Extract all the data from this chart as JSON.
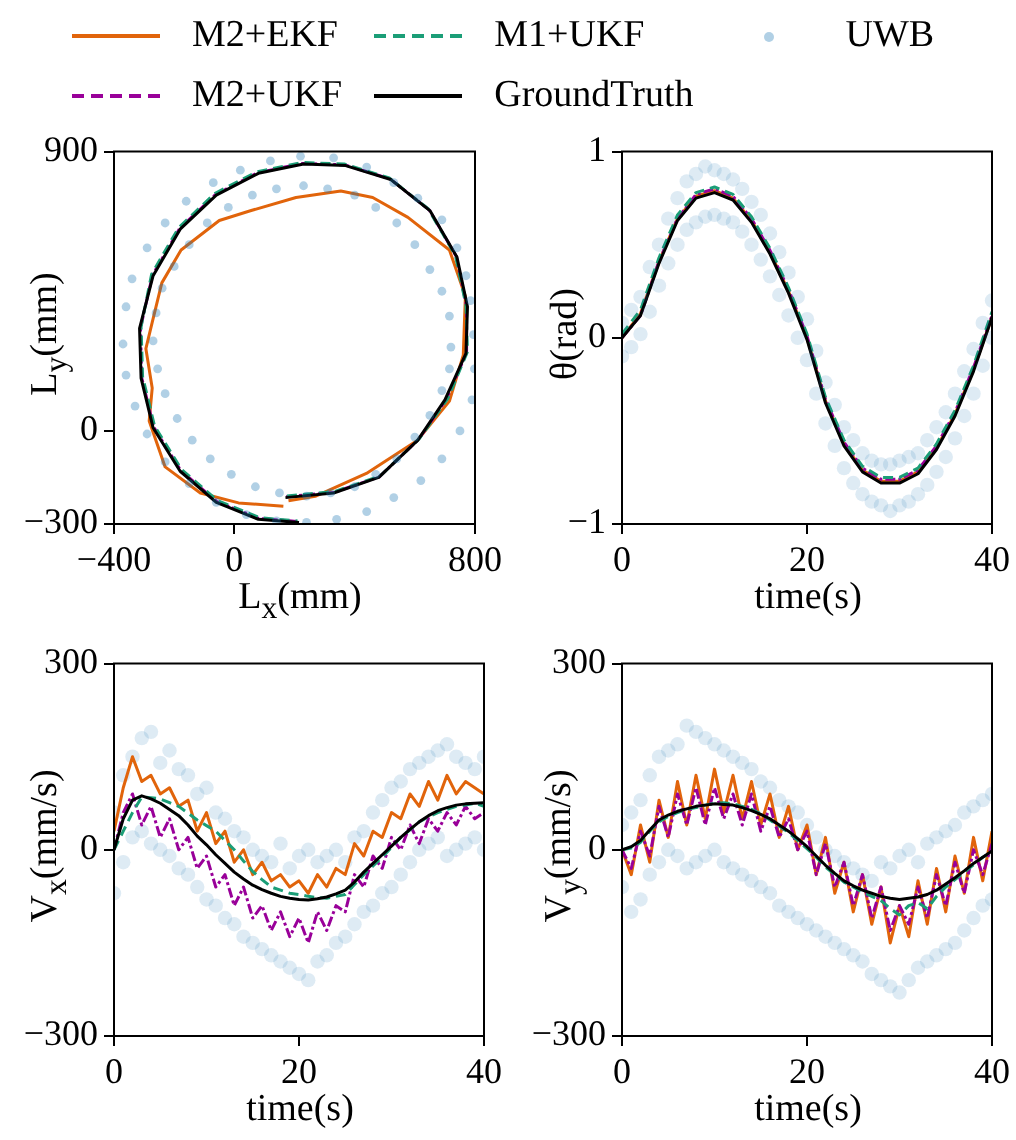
{
  "chart_data": [
    {
      "type": "line",
      "xlabel": "L$_{x}$(mm)",
      "ylabel": "L$_{y}$(mm)",
      "xlim": [
        -400,
        800
      ],
      "ylim": [
        -300,
        900
      ],
      "xticks": [
        -400,
        0,
        800
      ],
      "yticks": [
        -300,
        0,
        900
      ],
      "legend": "top",
      "series": [
        {
          "name": "M2+EKF",
          "type": "line",
          "color": "#e1640b",
          "line_style": "solid",
          "marker": "none",
          "x": [
            180,
            269,
            439,
            608,
            715,
            761,
            768,
            715,
            577,
            460,
            354,
            205,
            56,
            -50,
            -177,
            -241,
            -273,
            -294,
            -273,
            -283,
            -230,
            -113,
            14,
            163
          ],
          "values": [
            -225,
            -211,
            -137,
            -31,
            96,
            244,
            434,
            583,
            688,
            752,
            773,
            752,
            710,
            678,
            583,
            477,
            350,
            265,
            138,
            32,
            -116,
            -200,
            -232,
            -243
          ]
        },
        {
          "name": "M2+UKF",
          "type": "line",
          "color": "#990099",
          "line_style": "dashdot",
          "marker": "none",
          "x": [
            172,
            332,
            482,
            612,
            705,
            772,
            772,
            738,
            648,
            518,
            368,
            228,
            78,
            -62,
            -182,
            -272,
            -312,
            -308,
            -268,
            -178,
            -58,
            82,
            212
          ],
          "values": [
            -212,
            -198,
            -148,
            -28,
            102,
            252,
            402,
            562,
            712,
            812,
            857,
            862,
            832,
            762,
            652,
            502,
            332,
            172,
            12,
            -128,
            -228,
            -282,
            -292
          ]
        },
        {
          "name": "M1+UKF",
          "type": "line",
          "color": "#1b9e77",
          "line_style": "dashed",
          "marker": "none",
          "x": [
            175,
            335,
            485,
            615,
            710,
            775,
            770,
            735,
            645,
            515,
            365,
            225,
            75,
            -65,
            -185,
            -275,
            -310,
            -305,
            -265,
            -175,
            -55,
            85,
            210
          ],
          "values": [
            -210,
            -195,
            -145,
            -25,
            105,
            255,
            405,
            565,
            715,
            815,
            860,
            865,
            835,
            765,
            655,
            505,
            335,
            175,
            15,
            -125,
            -225,
            -280,
            -290
          ]
        },
        {
          "name": "GroundTruth",
          "type": "line",
          "color": "#000000",
          "line_style": "solid",
          "marker": "none",
          "x": [
            170,
            330,
            480,
            610,
            700,
            770,
            775,
            740,
            650,
            520,
            370,
            230,
            80,
            -60,
            -180,
            -270,
            -315,
            -310,
            -270,
            -180,
            -60,
            80,
            215
          ],
          "values": [
            -215,
            -200,
            -150,
            -30,
            100,
            250,
            400,
            560,
            710,
            810,
            855,
            860,
            830,
            760,
            650,
            500,
            330,
            170,
            10,
            -130,
            -230,
            -285,
            -295
          ]
        },
        {
          "name": "UWB",
          "type": "scatter",
          "color": "#1f77b4",
          "marker": "circle",
          "x": [
            795,
            785,
            770,
            740,
            690,
            610,
            530,
            440,
            330,
            220,
            120,
            20,
            -70,
            -160,
            -230,
            -290,
            -340,
            -360,
            -370,
            -360,
            -330,
            -290,
            -230,
            -150,
            -60,
            40,
            140,
            240,
            340,
            440,
            530,
            620,
            690,
            750,
            790,
            798,
            720,
            715,
            690,
            650,
            600,
            540,
            470,
            400,
            310,
            230,
            140,
            60,
            -20,
            -90,
            -150,
            -200,
            -240,
            -260,
            -270,
            -255,
            -230,
            -190,
            -140,
            -80,
            -10,
            70,
            150,
            240,
            320,
            400,
            470,
            540,
            600,
            650,
            690,
            715
          ],
          "values": [
            310,
            420,
            500,
            590,
            680,
            750,
            800,
            850,
            880,
            885,
            870,
            840,
            800,
            740,
            670,
            590,
            490,
            400,
            280,
            180,
            80,
            -10,
            -100,
            -170,
            -230,
            -270,
            -290,
            -295,
            -285,
            -260,
            -215,
            -160,
            -90,
            0,
            100,
            200,
            270,
            370,
            450,
            520,
            600,
            670,
            720,
            760,
            780,
            790,
            780,
            760,
            720,
            670,
            600,
            530,
            460,
            380,
            290,
            200,
            120,
            40,
            -30,
            -90,
            -140,
            -180,
            -200,
            -210,
            -200,
            -180,
            -140,
            -90,
            -20,
            50,
            130,
            200
          ]
        }
      ]
    },
    {
      "type": "line",
      "xlabel": "time(s)",
      "ylabel": "θ(rad)",
      "xlim": [
        0,
        40
      ],
      "ylim": [
        -1,
        1
      ],
      "xticks": [
        0,
        20,
        40
      ],
      "yticks": [
        -1,
        0,
        1
      ],
      "series": [
        {
          "type": "line",
          "color": "#e1640b",
          "line_style": "solid",
          "marker": "none",
          "x": [
            0,
            2,
            4,
            6,
            8,
            10,
            12,
            14,
            16,
            18,
            20,
            22,
            24,
            26,
            28,
            30,
            32,
            34,
            36,
            38,
            40
          ],
          "values": [
            0,
            0.13,
            0.41,
            0.64,
            0.76,
            0.79,
            0.75,
            0.63,
            0.46,
            0.25,
            0.0,
            -0.34,
            -0.57,
            -0.71,
            -0.77,
            -0.77,
            -0.72,
            -0.59,
            -0.41,
            -0.17,
            0.11
          ]
        },
        {
          "type": "line",
          "color": "#990099",
          "line_style": "dashdot",
          "marker": "none",
          "x": [
            0,
            2,
            4,
            6,
            8,
            10,
            12,
            14,
            16,
            18,
            20,
            22,
            24,
            26,
            28,
            30,
            32,
            34,
            36,
            38,
            40
          ],
          "values": [
            0,
            0.12,
            0.41,
            0.64,
            0.77,
            0.8,
            0.76,
            0.64,
            0.47,
            0.26,
            0.01,
            -0.33,
            -0.56,
            -0.7,
            -0.76,
            -0.76,
            -0.71,
            -0.58,
            -0.4,
            -0.16,
            0.12
          ]
        },
        {
          "type": "line",
          "color": "#1b9e77",
          "line_style": "dashed",
          "marker": "none",
          "x": [
            0,
            2,
            4,
            6,
            8,
            10,
            12,
            14,
            16,
            18,
            20,
            22,
            24,
            26,
            28,
            30,
            32,
            34,
            36,
            38,
            40
          ],
          "values": [
            0.02,
            0.15,
            0.43,
            0.66,
            0.78,
            0.81,
            0.77,
            0.65,
            0.48,
            0.27,
            0.02,
            -0.32,
            -0.55,
            -0.69,
            -0.75,
            -0.75,
            -0.7,
            -0.57,
            -0.39,
            -0.15,
            0.14
          ]
        },
        {
          "type": "line",
          "color": "#000000",
          "line_style": "solid",
          "marker": "none",
          "x": [
            0,
            2,
            4,
            6,
            8,
            10,
            12,
            14,
            16,
            18,
            20,
            22,
            24,
            26,
            28,
            30,
            32,
            34,
            36,
            38,
            40
          ],
          "values": [
            0,
            0.12,
            0.4,
            0.63,
            0.75,
            0.78,
            0.74,
            0.62,
            0.45,
            0.24,
            -0.01,
            -0.35,
            -0.58,
            -0.72,
            -0.78,
            -0.78,
            -0.73,
            -0.6,
            -0.42,
            -0.18,
            0.11
          ]
        },
        {
          "type": "scatter",
          "color": "#1f77b4",
          "marker": "circle",
          "x": [
            0,
            1,
            2,
            3,
            4,
            5,
            6,
            7,
            8,
            9,
            10,
            11,
            12,
            13,
            14,
            15,
            16,
            17,
            18,
            19,
            20,
            21,
            22,
            23,
            24,
            25,
            26,
            27,
            28,
            29,
            30,
            31,
            32,
            33,
            34,
            35,
            36,
            37,
            38,
            39,
            40,
            0,
            1,
            2,
            3,
            4,
            5,
            6,
            7,
            8,
            9,
            10,
            11,
            12,
            13,
            14,
            15,
            16,
            17,
            18,
            19,
            20,
            21,
            22,
            23,
            24,
            25,
            26,
            27,
            28,
            29,
            30,
            31,
            32,
            33,
            34,
            35,
            36,
            37,
            38,
            39,
            40
          ],
          "values": [
            0.08,
            0.15,
            0.22,
            0.38,
            0.5,
            0.64,
            0.75,
            0.84,
            0.88,
            0.92,
            0.9,
            0.88,
            0.85,
            0.8,
            0.73,
            0.66,
            0.56,
            0.46,
            0.35,
            0.22,
            0.1,
            -0.07,
            -0.24,
            -0.36,
            -0.48,
            -0.55,
            -0.62,
            -0.66,
            -0.68,
            -0.68,
            -0.66,
            -0.64,
            -0.62,
            -0.55,
            -0.48,
            -0.4,
            -0.3,
            -0.18,
            -0.06,
            0.08,
            0.2,
            -0.1,
            -0.05,
            0.02,
            0.14,
            0.28,
            0.4,
            0.5,
            0.58,
            0.62,
            0.65,
            0.66,
            0.64,
            0.62,
            0.57,
            0.5,
            0.42,
            0.33,
            0.23,
            0.12,
            0.0,
            -0.12,
            -0.3,
            -0.46,
            -0.58,
            -0.7,
            -0.78,
            -0.84,
            -0.88,
            -0.9,
            -0.93,
            -0.9,
            -0.88,
            -0.84,
            -0.79,
            -0.72,
            -0.64,
            -0.54,
            -0.42,
            -0.3,
            -0.15,
            0.0
          ]
        }
      ]
    },
    {
      "type": "line",
      "xlabel": "time(s)",
      "ylabel": "V$_{x}$(mm/s)",
      "xlim": [
        0,
        40
      ],
      "ylim": [
        -300,
        300
      ],
      "xticks": [
        0,
        20,
        40
      ],
      "yticks": [
        -300,
        0,
        300
      ],
      "series": [
        {
          "type": "scatter",
          "color": "#1f77b4",
          "marker": "circle",
          "x": [
            0,
            1,
            2,
            3,
            4,
            5,
            6,
            7,
            8,
            9,
            10,
            11,
            12,
            13,
            14,
            15,
            16,
            17,
            18,
            19,
            20,
            21,
            22,
            23,
            24,
            25,
            26,
            27,
            28,
            29,
            30,
            31,
            32,
            33,
            34,
            35,
            36,
            37,
            38,
            39,
            40,
            0,
            1,
            2,
            3,
            4,
            5,
            6,
            7,
            8,
            9,
            10,
            11,
            12,
            13,
            14,
            15,
            16,
            17,
            18,
            19,
            20,
            21,
            22,
            23,
            24,
            25,
            26,
            27,
            28,
            29,
            30,
            31,
            32,
            33,
            34,
            35,
            36,
            37,
            38,
            39,
            40
          ],
          "values": [
            60,
            120,
            150,
            180,
            190,
            140,
            160,
            130,
            120,
            90,
            100,
            60,
            50,
            30,
            20,
            0,
            -10,
            -20,
            10,
            -30,
            -10,
            0,
            -20,
            -10,
            0,
            -20,
            20,
            30,
            60,
            80,
            100,
            110,
            130,
            140,
            150,
            160,
            170,
            150,
            140,
            130,
            150,
            -70,
            -20,
            20,
            30,
            10,
            0,
            -10,
            -30,
            -40,
            -60,
            -80,
            -90,
            -110,
            -120,
            -140,
            -150,
            -160,
            -170,
            -180,
            -190,
            -200,
            -210,
            -180,
            -170,
            -150,
            -140,
            -120,
            -100,
            -90,
            -70,
            -60,
            -40,
            -20,
            0,
            10,
            20,
            -10,
            0,
            10,
            20,
            0
          ]
        },
        {
          "type": "line",
          "color": "#e1640b",
          "line_style": "solid",
          "marker": "none",
          "x": [
            0,
            1,
            2,
            3,
            4,
            5,
            6,
            7,
            8,
            9,
            10,
            11,
            12,
            13,
            14,
            15,
            16,
            17,
            18,
            19,
            20,
            21,
            22,
            23,
            24,
            25,
            26,
            27,
            28,
            29,
            30,
            31,
            32,
            33,
            34,
            35,
            36,
            37,
            38,
            39,
            40
          ],
          "values": [
            30,
            100,
            150,
            110,
            120,
            90,
            100,
            70,
            80,
            30,
            60,
            10,
            30,
            -20,
            0,
            -40,
            -20,
            -50,
            -40,
            -60,
            -50,
            -70,
            -40,
            -60,
            -30,
            -40,
            10,
            -10,
            30,
            20,
            60,
            50,
            90,
            70,
            110,
            80,
            120,
            90,
            110,
            100,
            90
          ]
        },
        {
          "type": "line",
          "color": "#990099",
          "line_style": "dashdot",
          "marker": "none",
          "x": [
            0,
            1,
            2,
            3,
            4,
            5,
            6,
            7,
            8,
            9,
            10,
            11,
            12,
            13,
            14,
            15,
            16,
            17,
            18,
            19,
            20,
            21,
            22,
            23,
            24,
            25,
            26,
            27,
            28,
            29,
            30,
            31,
            32,
            33,
            34,
            35,
            36,
            37,
            38,
            39,
            40
          ],
          "values": [
            0,
            60,
            90,
            40,
            70,
            20,
            50,
            0,
            20,
            -30,
            -10,
            -60,
            -40,
            -90,
            -60,
            -110,
            -90,
            -130,
            -100,
            -140,
            -110,
            -150,
            -100,
            -130,
            -90,
            -100,
            -40,
            -60,
            -10,
            -30,
            20,
            0,
            40,
            10,
            50,
            30,
            60,
            40,
            70,
            50,
            60
          ]
        },
        {
          "type": "line",
          "color": "#1b9e77",
          "line_style": "dashed",
          "marker": "none",
          "x": [
            0,
            1,
            2,
            3,
            4,
            5,
            6,
            7,
            8,
            9,
            10,
            11,
            12,
            13,
            14,
            15,
            16,
            17,
            18,
            19,
            20,
            21,
            22,
            23,
            24,
            25,
            26,
            27,
            28,
            29,
            30,
            31,
            32,
            33,
            34,
            35,
            36,
            37,
            38,
            39,
            40
          ],
          "values": [
            0,
            30,
            60,
            85,
            84,
            82,
            76,
            70,
            59,
            48,
            39,
            30,
            15,
            0,
            -18,
            -35,
            -48,
            -60,
            -65,
            -70,
            -72,
            -75,
            -77,
            -78,
            -75,
            -72,
            -56,
            -40,
            -26,
            -12,
            4,
            20,
            32,
            45,
            53,
            60,
            65,
            70,
            72,
            75,
            70
          ]
        },
        {
          "type": "line",
          "color": "#000000",
          "line_style": "solid",
          "marker": "none",
          "x": [
            0,
            1,
            2,
            3,
            4,
            5,
            6,
            7,
            8,
            9,
            10,
            11,
            12,
            13,
            14,
            15,
            16,
            17,
            18,
            19,
            20,
            21,
            22,
            23,
            24,
            25,
            26,
            27,
            28,
            29,
            30,
            31,
            32,
            33,
            34,
            35,
            36,
            37,
            38,
            39,
            40
          ],
          "values": [
            0,
            50,
            80,
            87,
            82,
            75,
            65,
            55,
            40,
            22,
            8,
            -8,
            -22,
            -36,
            -47,
            -57,
            -64,
            -70,
            -75,
            -78,
            -80,
            -81,
            -79,
            -76,
            -71,
            -65,
            -52,
            -36,
            -22,
            -8,
            6,
            20,
            33,
            45,
            55,
            63,
            68,
            72,
            74,
            75,
            76
          ]
        }
      ]
    },
    {
      "type": "line",
      "xlabel": "time(s)",
      "ylabel": "V$_{y}$(mm/s)",
      "xlim": [
        0,
        40
      ],
      "ylim": [
        -300,
        300
      ],
      "xticks": [
        0,
        20,
        40
      ],
      "yticks": [
        -300,
        0,
        300
      ],
      "series": [
        {
          "type": "scatter",
          "color": "#1f77b4",
          "marker": "circle",
          "x": [
            0,
            1,
            2,
            3,
            4,
            5,
            6,
            7,
            8,
            9,
            10,
            11,
            12,
            13,
            14,
            15,
            16,
            17,
            18,
            19,
            20,
            21,
            22,
            23,
            24,
            25,
            26,
            27,
            28,
            29,
            30,
            31,
            32,
            33,
            34,
            35,
            36,
            37,
            38,
            39,
            40,
            0,
            1,
            2,
            3,
            4,
            5,
            6,
            7,
            8,
            9,
            10,
            11,
            12,
            13,
            14,
            15,
            16,
            17,
            18,
            19,
            20,
            21,
            22,
            23,
            24,
            25,
            26,
            27,
            28,
            29,
            30,
            31,
            32,
            33,
            34,
            35,
            36,
            37,
            38,
            39,
            40
          ],
          "values": [
            40,
            60,
            80,
            120,
            150,
            160,
            170,
            200,
            190,
            180,
            170,
            160,
            150,
            140,
            130,
            110,
            100,
            80,
            70,
            60,
            40,
            20,
            0,
            -10,
            -20,
            -30,
            -40,
            -50,
            -20,
            -30,
            -10,
            0,
            -20,
            10,
            20,
            30,
            40,
            60,
            70,
            80,
            90,
            -60,
            -100,
            -80,
            -40,
            -20,
            0,
            -10,
            -30,
            -20,
            -10,
            0,
            -20,
            -30,
            -40,
            -50,
            -60,
            -70,
            -90,
            -100,
            -110,
            -120,
            -130,
            -140,
            -150,
            -160,
            -170,
            -180,
            -200,
            -210,
            -220,
            -230,
            -210,
            -190,
            -180,
            -170,
            -160,
            -150,
            -130,
            -110,
            -90,
            -80
          ]
        },
        {
          "type": "line",
          "color": "#e1640b",
          "line_style": "solid",
          "marker": "none",
          "x": [
            0,
            1,
            2,
            3,
            4,
            5,
            6,
            7,
            8,
            9,
            10,
            11,
            12,
            13,
            14,
            15,
            16,
            17,
            18,
            19,
            20,
            21,
            22,
            23,
            24,
            25,
            26,
            27,
            28,
            29,
            30,
            31,
            32,
            33,
            34,
            35,
            36,
            37,
            38,
            39,
            40
          ],
          "values": [
            0,
            -40,
            40,
            -20,
            80,
            20,
            110,
            40,
            120,
            50,
            130,
            60,
            120,
            50,
            110,
            40,
            90,
            20,
            70,
            0,
            40,
            -40,
            20,
            -70,
            -20,
            -100,
            -40,
            -120,
            -60,
            -150,
            -90,
            -140,
            -50,
            -120,
            -30,
            -100,
            -10,
            -70,
            20,
            -50,
            30
          ]
        },
        {
          "type": "line",
          "color": "#990099",
          "line_style": "dashdot",
          "marker": "none",
          "x": [
            0,
            1,
            2,
            3,
            4,
            5,
            6,
            7,
            8,
            9,
            10,
            11,
            12,
            13,
            14,
            15,
            16,
            17,
            18,
            19,
            20,
            21,
            22,
            23,
            24,
            25,
            26,
            27,
            28,
            29,
            30,
            31,
            32,
            33,
            34,
            35,
            36,
            37,
            38,
            39,
            40
          ],
          "values": [
            0,
            -30,
            30,
            -10,
            70,
            20,
            90,
            40,
            100,
            40,
            100,
            50,
            90,
            40,
            90,
            30,
            70,
            20,
            50,
            0,
            30,
            -40,
            10,
            -60,
            -20,
            -90,
            -40,
            -110,
            -60,
            -130,
            -90,
            -120,
            -60,
            -110,
            -40,
            -90,
            -20,
            -70,
            0,
            -40,
            10
          ]
        },
        {
          "type": "line",
          "color": "#1b9e77",
          "line_style": "dashed",
          "marker": "none",
          "x": [
            0,
            1,
            2,
            3,
            4,
            5,
            6,
            7,
            8,
            9,
            10,
            11,
            12,
            13,
            14,
            15,
            16,
            17,
            18,
            19,
            20,
            21,
            22,
            23,
            24,
            25,
            26,
            27,
            28,
            29,
            30,
            31,
            32,
            33,
            34,
            35,
            36,
            37,
            38,
            39,
            40
          ],
          "values": [
            0,
            3,
            12,
            30,
            45,
            54,
            60,
            65,
            68,
            72,
            75,
            76,
            74,
            70,
            65,
            58,
            48,
            38,
            28,
            15,
            2,
            -12,
            -28,
            -40,
            -52,
            -60,
            -68,
            -75,
            -82,
            -95,
            -105,
            -90,
            -85,
            -95,
            -75,
            -60,
            -48,
            -36,
            -24,
            -12,
            -4
          ]
        },
        {
          "type": "line",
          "color": "#000000",
          "line_style": "solid",
          "marker": "none",
          "x": [
            0,
            1,
            2,
            3,
            4,
            5,
            6,
            7,
            8,
            9,
            10,
            11,
            12,
            13,
            14,
            15,
            16,
            17,
            18,
            19,
            20,
            21,
            22,
            23,
            24,
            25,
            26,
            27,
            28,
            29,
            30,
            31,
            32,
            33,
            34,
            35,
            36,
            37,
            38,
            39,
            40
          ],
          "values": [
            0,
            5,
            15,
            32,
            48,
            56,
            62,
            66,
            70,
            72,
            74,
            73,
            72,
            68,
            63,
            57,
            50,
            40,
            30,
            18,
            5,
            -10,
            -25,
            -38,
            -50,
            -58,
            -65,
            -70,
            -75,
            -78,
            -80,
            -78,
            -76,
            -72,
            -65,
            -55,
            -45,
            -34,
            -22,
            -12,
            -2
          ]
        }
      ]
    }
  ]
}
